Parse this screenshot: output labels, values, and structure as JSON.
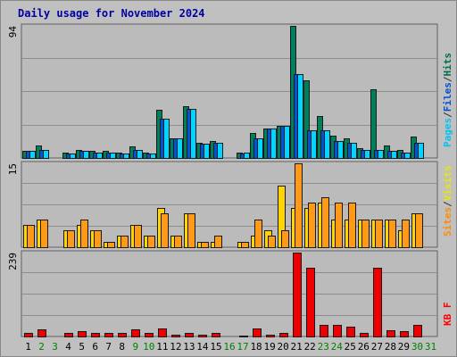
{
  "chart_data": {
    "type": "bar",
    "title": "Daily usage for November 2024",
    "categories": [
      "1",
      "2",
      "3",
      "4",
      "5",
      "6",
      "7",
      "8",
      "9",
      "10",
      "11",
      "12",
      "13",
      "14",
      "15",
      "16",
      "17",
      "18",
      "19",
      "20",
      "21",
      "22",
      "23",
      "24",
      "25",
      "26",
      "27",
      "28",
      "29",
      "30",
      "31"
    ],
    "weekend_days": [
      "2",
      "3",
      "9",
      "10",
      "16",
      "17",
      "23",
      "24",
      "30",
      "31"
    ],
    "panels": [
      {
        "id": "hits",
        "ymax": 94,
        "ymax_label": "94",
        "side_label_parts": [
          {
            "text": "Pages",
            "color": "#00c4f4"
          },
          {
            "text": "/",
            "color": "#333333"
          },
          {
            "text": "Files",
            "color": "#0050d0"
          },
          {
            "text": "/",
            "color": "#333333"
          },
          {
            "text": "Hits",
            "color": "#006e50"
          }
        ],
        "series": [
          {
            "name": "Hits",
            "color": "#00805a",
            "values": [
              5,
              9,
              0,
              4,
              6,
              5,
              5,
              4,
              8,
              4,
              34,
              14,
              37,
              11,
              12,
              0,
              4,
              18,
              21,
              23,
              94,
              55,
              30,
              16,
              14,
              7,
              49,
              9,
              6,
              15,
              0
            ]
          },
          {
            "name": "Files",
            "color": "#0054d8",
            "values": [
              5,
              6,
              0,
              3,
              5,
              4,
              4,
              3,
              6,
              3,
              28,
              14,
              35,
              10,
              11,
              0,
              3,
              14,
              21,
              23,
              60,
              20,
              20,
              12,
              11,
              6,
              6,
              5,
              4,
              11,
              0
            ]
          },
          {
            "name": "Pages",
            "color": "#00d6ff",
            "values": [
              5,
              6,
              0,
              3,
              5,
              4,
              4,
              3,
              6,
              3,
              28,
              14,
              35,
              10,
              11,
              0,
              4,
              14,
              21,
              23,
              60,
              20,
              20,
              12,
              11,
              6,
              6,
              5,
              4,
              11,
              0
            ]
          }
        ]
      },
      {
        "id": "visits",
        "ymax": 15,
        "ymax_label": "15",
        "side_label_parts": [
          {
            "text": "Sites",
            "color": "#ff8c00"
          },
          {
            "text": "/",
            "color": "#333333"
          },
          {
            "text": "Visits",
            "color": "#e8e800"
          }
        ],
        "series": [
          {
            "name": "Visits",
            "color": "#ffd400",
            "values": [
              4,
              5,
              0,
              3,
              4,
              3,
              1,
              2,
              4,
              2,
              7,
              2,
              6,
              1,
              1,
              0,
              1,
              2,
              3,
              11,
              7,
              7,
              8,
              5,
              5,
              5,
              5,
              5,
              3,
              6,
              0
            ]
          },
          {
            "name": "Sites",
            "color": "#ff9a18",
            "values": [
              4,
              5,
              0,
              3,
              5,
              3,
              1,
              2,
              4,
              2,
              6,
              2,
              6,
              1,
              2,
              0,
              1,
              5,
              2,
              3,
              15,
              8,
              9,
              8,
              8,
              5,
              5,
              5,
              5,
              6,
              0
            ]
          }
        ]
      },
      {
        "id": "kbytes",
        "ymax": 239,
        "ymax_label": "239",
        "side_label_parts": [
          {
            "text": "KB F",
            "color": "#ff0000"
          }
        ],
        "series": [
          {
            "name": "KB F",
            "color": "#ee0000",
            "values": [
              10,
              20,
              0,
              11,
              14,
              11,
              10,
              11,
              20,
              9,
              24,
              6,
              11,
              4,
              9,
              0,
              3,
              22,
              6,
              10,
              239,
              195,
              32,
              32,
              29,
              10,
              195,
              17,
              16,
              32,
              0
            ]
          }
        ]
      }
    ],
    "colors": {
      "background": "#ffffff",
      "frame_bg": "#c0c0c0",
      "plot_bg": "#bbbbbb",
      "title": "#0000a0",
      "label_normal": "#000000",
      "label_weekend": "#008000",
      "grid": "#8e8e8e"
    }
  }
}
